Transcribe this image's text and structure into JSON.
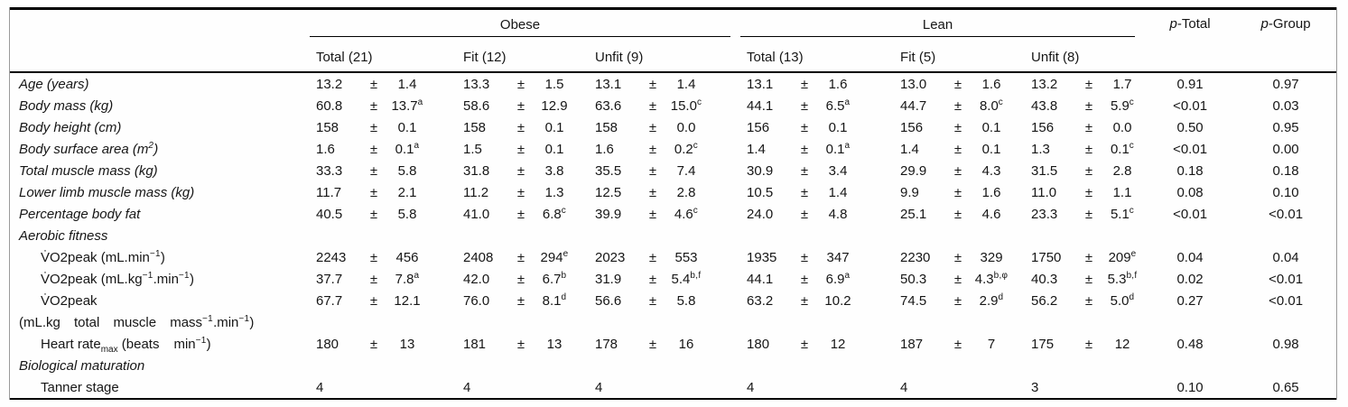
{
  "meta": {
    "pm": "±"
  },
  "header": {
    "groups": [
      {
        "label": "Obese",
        "cols": [
          "Total (21)",
          "Fit (12)",
          "Unfit (9)"
        ]
      },
      {
        "label": "Lean",
        "cols": [
          "Total (13)",
          "Fit (5)",
          "Unfit (8)"
        ]
      }
    ],
    "p_cols": [
      {
        "p": "p",
        "rest": "-Total"
      },
      {
        "p": "p",
        "rest": "-Group"
      }
    ]
  },
  "rows": [
    {
      "type": "data",
      "italic": true,
      "label": [
        {
          "t": "Age (years)"
        }
      ],
      "cells": [
        {
          "v": "13.2",
          "sd": "1.4"
        },
        {
          "v": "13.3",
          "sd": "1.5"
        },
        {
          "v": "13.1",
          "sd": "1.4"
        },
        {
          "v": "13.1",
          "sd": "1.6"
        },
        {
          "v": "13.0",
          "sd": "1.6"
        },
        {
          "v": "13.2",
          "sd": "1.7"
        }
      ],
      "p_total": "0.91",
      "p_group": "0.97"
    },
    {
      "type": "data",
      "italic": true,
      "label": [
        {
          "t": "Body mass (kg)"
        }
      ],
      "cells": [
        {
          "v": "60.8",
          "sd": "13.7",
          "sup": "a"
        },
        {
          "v": "58.6",
          "sd": "12.9"
        },
        {
          "v": "63.6",
          "sd": "15.0",
          "sup": "c"
        },
        {
          "v": "44.1",
          "sd": "6.5",
          "sup": "a"
        },
        {
          "v": "44.7",
          "sd": "8.0",
          "sup": "c"
        },
        {
          "v": "43.8",
          "sd": "5.9",
          "sup": "c"
        }
      ],
      "p_total": "<0.01",
      "p_group": "0.03"
    },
    {
      "type": "data",
      "italic": true,
      "label": [
        {
          "t": "Body height (cm)"
        }
      ],
      "cells": [
        {
          "v": "158",
          "sd": "0.1"
        },
        {
          "v": "158",
          "sd": "0.1"
        },
        {
          "v": "158",
          "sd": "0.0"
        },
        {
          "v": "156",
          "sd": "0.1"
        },
        {
          "v": "156",
          "sd": "0.1"
        },
        {
          "v": "156",
          "sd": "0.0"
        }
      ],
      "p_total": "0.50",
      "p_group": "0.95"
    },
    {
      "type": "data",
      "italic": true,
      "label": [
        {
          "t": "Body surface area (m"
        },
        {
          "sup": "2"
        },
        {
          "t": ")"
        }
      ],
      "cells": [
        {
          "v": "1.6",
          "sd": "0.1",
          "sup": "a"
        },
        {
          "v": "1.5",
          "sd": "0.1"
        },
        {
          "v": "1.6",
          "sd": "0.2",
          "sup": "c"
        },
        {
          "v": "1.4",
          "sd": "0.1",
          "sup": "a"
        },
        {
          "v": "1.4",
          "sd": "0.1"
        },
        {
          "v": "1.3",
          "sd": "0.1",
          "sup": "c"
        }
      ],
      "p_total": "<0.01",
      "p_group": "0.00"
    },
    {
      "type": "data",
      "italic": true,
      "label": [
        {
          "t": "Total muscle mass (kg)"
        }
      ],
      "cells": [
        {
          "v": "33.3",
          "sd": "5.8"
        },
        {
          "v": "31.8",
          "sd": "3.8"
        },
        {
          "v": "35.5",
          "sd": "7.4"
        },
        {
          "v": "30.9",
          "sd": "3.4"
        },
        {
          "v": "29.9",
          "sd": "4.3"
        },
        {
          "v": "31.5",
          "sd": "2.8"
        }
      ],
      "p_total": "0.18",
      "p_group": "0.18"
    },
    {
      "type": "data",
      "italic": true,
      "label": [
        {
          "t": "Lower limb muscle mass (kg)"
        }
      ],
      "cells": [
        {
          "v": "11.7",
          "sd": "2.1"
        },
        {
          "v": "11.2",
          "sd": "1.3"
        },
        {
          "v": "12.5",
          "sd": "2.8"
        },
        {
          "v": "10.5",
          "sd": "1.4"
        },
        {
          "v": "9.9",
          "sd": "1.6"
        },
        {
          "v": "11.0",
          "sd": "1.1"
        }
      ],
      "p_total": "0.08",
      "p_group": "0.10"
    },
    {
      "type": "data",
      "italic": true,
      "label": [
        {
          "t": "Percentage body fat"
        }
      ],
      "cells": [
        {
          "v": "40.5",
          "sd": "5.8"
        },
        {
          "v": "41.0",
          "sd": "6.8",
          "sup": "c"
        },
        {
          "v": "39.9",
          "sd": "4.6",
          "sup": "c"
        },
        {
          "v": "24.0",
          "sd": "4.8"
        },
        {
          "v": "25.1",
          "sd": "4.6"
        },
        {
          "v": "23.3",
          "sd": "5.1",
          "sup": "c"
        }
      ],
      "p_total": "<0.01",
      "p_group": "<0.01"
    },
    {
      "type": "section",
      "label": [
        {
          "t": "Aerobic fitness"
        }
      ]
    },
    {
      "type": "data",
      "indent": true,
      "label": [
        {
          "t": "V̇O2peak (mL.min"
        },
        {
          "sup": "−1"
        },
        {
          "t": ")"
        }
      ],
      "cells": [
        {
          "v": "2243",
          "sd": "456"
        },
        {
          "v": "2408",
          "sd": "294",
          "sup": "e"
        },
        {
          "v": "2023",
          "sd": "553"
        },
        {
          "v": "1935",
          "sd": "347"
        },
        {
          "v": "2230",
          "sd": "329"
        },
        {
          "v": "1750",
          "sd": "209",
          "sup": "e"
        }
      ],
      "p_total": "0.04",
      "p_group": "0.04"
    },
    {
      "type": "data",
      "indent": true,
      "label": [
        {
          "t": "V̇O2peak (mL.kg"
        },
        {
          "sup": "−1"
        },
        {
          "t": ".min"
        },
        {
          "sup": "−1"
        },
        {
          "t": ")"
        }
      ],
      "cells": [
        {
          "v": "37.7",
          "sd": "7.8",
          "sup": "a"
        },
        {
          "v": "42.0",
          "sd": "6.7",
          "sup": "b"
        },
        {
          "v": "31.9",
          "sd": "5.4",
          "sup": "b,f"
        },
        {
          "v": "44.1",
          "sd": "6.9",
          "sup": "a"
        },
        {
          "v": "50.3",
          "sd": "4.3",
          "sup": "b,φ"
        },
        {
          "v": "40.3",
          "sd": "5.3",
          "sup": "b,f"
        }
      ],
      "p_total": "0.02",
      "p_group": "<0.01"
    },
    {
      "type": "data",
      "indent": true,
      "label": [
        {
          "t": "V̇O2peak"
        }
      ],
      "cells": [
        {
          "v": "67.7",
          "sd": "12.1"
        },
        {
          "v": "76.0",
          "sd": "8.1",
          "sup": "d"
        },
        {
          "v": "56.6",
          "sd": "5.8"
        },
        {
          "v": "63.2",
          "sd": "10.2"
        },
        {
          "v": "74.5",
          "sd": "2.9",
          "sup": "d"
        },
        {
          "v": "56.2",
          "sd": "5.0",
          "sup": "d"
        }
      ],
      "p_total": "0.27",
      "p_group": "<0.01"
    },
    {
      "type": "continuation",
      "label": [
        {
          "t": "(mL.kg total muscle mass"
        },
        {
          "sup": "−1"
        },
        {
          "t": ".min"
        },
        {
          "sup": "−1"
        },
        {
          "t": ")"
        }
      ]
    },
    {
      "type": "data",
      "indent": true,
      "label": [
        {
          "t": "Heart rate"
        },
        {
          "sub": "max"
        },
        {
          "t": " (beats"
        },
        {
          "g": 1
        },
        {
          "t": "min"
        },
        {
          "sup": "−1"
        },
        {
          "t": ")"
        }
      ],
      "cells": [
        {
          "v": "180",
          "sd": "13"
        },
        {
          "v": "181",
          "sd": "13"
        },
        {
          "v": "178",
          "sd": "16"
        },
        {
          "v": "180",
          "sd": "12"
        },
        {
          "v": "187",
          "sd": "7"
        },
        {
          "v": "175",
          "sd": "12"
        }
      ],
      "p_total": "0.48",
      "p_group": "0.98"
    },
    {
      "type": "section",
      "label": [
        {
          "t": "Biological maturation"
        }
      ]
    },
    {
      "type": "data",
      "indent": true,
      "label": [
        {
          "t": "Tanner stage"
        }
      ],
      "cells": [
        {
          "v": "4"
        },
        {
          "v": "4"
        },
        {
          "v": "4"
        },
        {
          "v": "4"
        },
        {
          "v": "4"
        },
        {
          "v": "3"
        }
      ],
      "p_total": "0.10",
      "p_group": "0.65"
    }
  ]
}
